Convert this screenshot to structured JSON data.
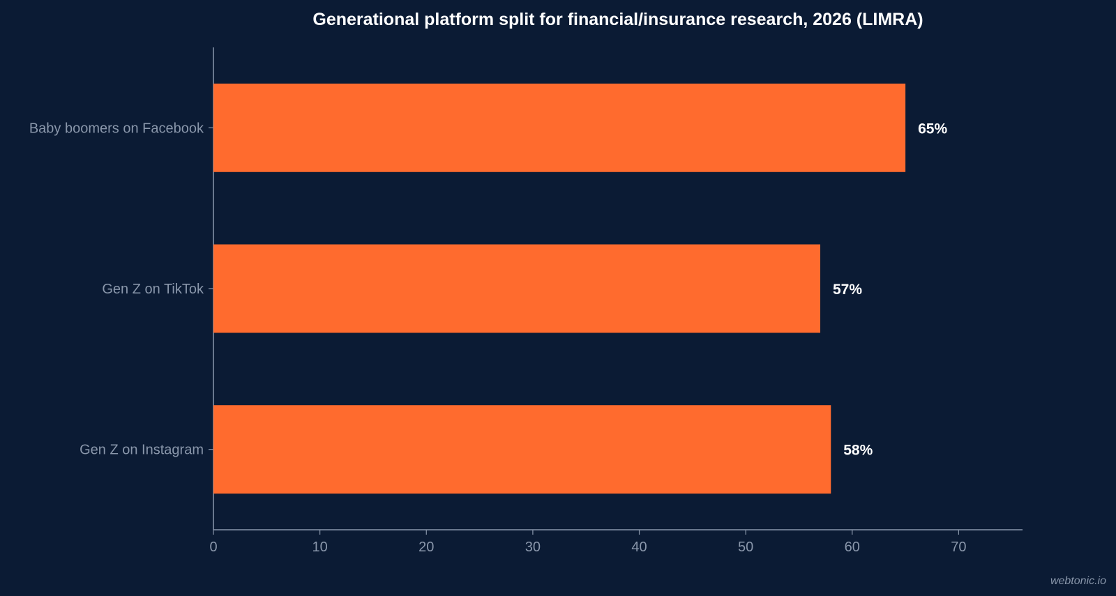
{
  "chart_data": {
    "type": "bar",
    "orientation": "horizontal",
    "title": "Generational platform split for financial/insurance research, 2026 (LIMRA)",
    "categories": [
      "Baby boomers on Facebook",
      "Gen Z on TikTok",
      "Gen Z on Instagram"
    ],
    "values": [
      65,
      57,
      58
    ],
    "data_labels": [
      "65%",
      "57%",
      "58%"
    ],
    "xlabel": "",
    "ylabel": "",
    "xlim": [
      0,
      76
    ],
    "xticks": [
      0,
      10,
      20,
      30,
      40,
      50,
      60,
      70
    ],
    "grid": false,
    "legend": "none",
    "colors": {
      "background": "#0b1b34",
      "bar": "#ff6b2e",
      "axis": "#8a97ab",
      "label": "#ffffff"
    }
  },
  "watermark": "webtonic.io"
}
